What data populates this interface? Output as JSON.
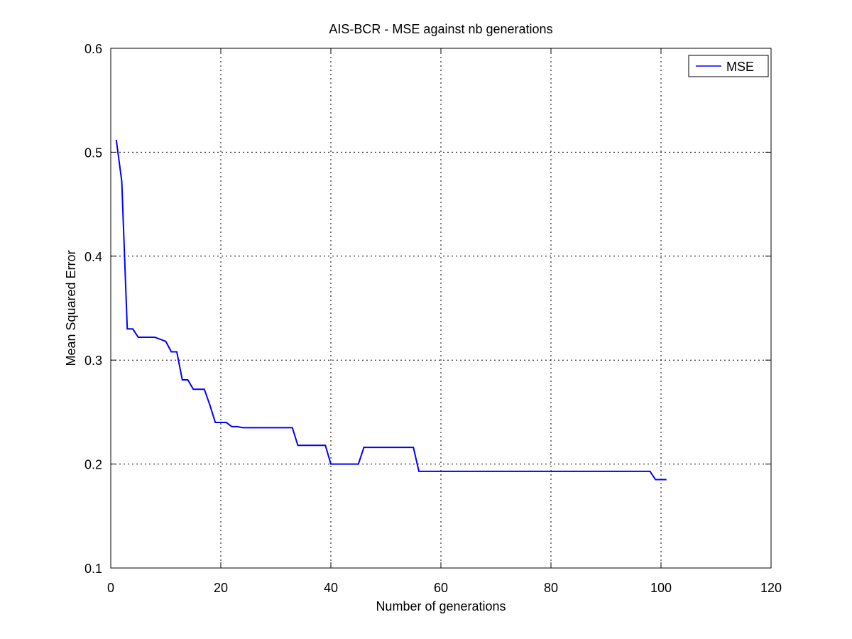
{
  "chart_data": {
    "type": "line",
    "title": "AIS-BCR - MSE against nb generations",
    "xlabel": "Number of generations",
    "ylabel": "Mean Squared Error",
    "xlim": [
      0,
      120
    ],
    "ylim": [
      0.1,
      0.6
    ],
    "xticks": [
      0,
      20,
      40,
      60,
      80,
      100,
      120
    ],
    "yticks": [
      0.1,
      0.2,
      0.3,
      0.4,
      0.5,
      0.6
    ],
    "xtick_labels": [
      "0",
      "20",
      "40",
      "60",
      "80",
      "100",
      "120"
    ],
    "ytick_labels": [
      "0.1",
      "0.2",
      "0.3",
      "0.4",
      "0.5",
      "0.6"
    ],
    "grid": true,
    "grid_style": "dotted",
    "legend_position": "top-right",
    "series": [
      {
        "name": "MSE",
        "color": "#0000ff",
        "x": [
          1,
          2,
          3,
          4,
          5,
          8,
          10,
          11,
          12,
          13,
          14,
          15,
          17,
          18,
          19,
          21,
          22,
          23,
          24,
          33,
          34,
          39,
          40,
          45,
          46,
          55,
          56,
          98,
          99,
          101
        ],
        "y": [
          0.512,
          0.472,
          0.33,
          0.33,
          0.322,
          0.322,
          0.318,
          0.308,
          0.308,
          0.281,
          0.281,
          0.272,
          0.272,
          0.257,
          0.24,
          0.24,
          0.236,
          0.236,
          0.235,
          0.235,
          0.218,
          0.218,
          0.2,
          0.2,
          0.216,
          0.216,
          0.193,
          0.193,
          0.185,
          0.185
        ]
      }
    ]
  }
}
